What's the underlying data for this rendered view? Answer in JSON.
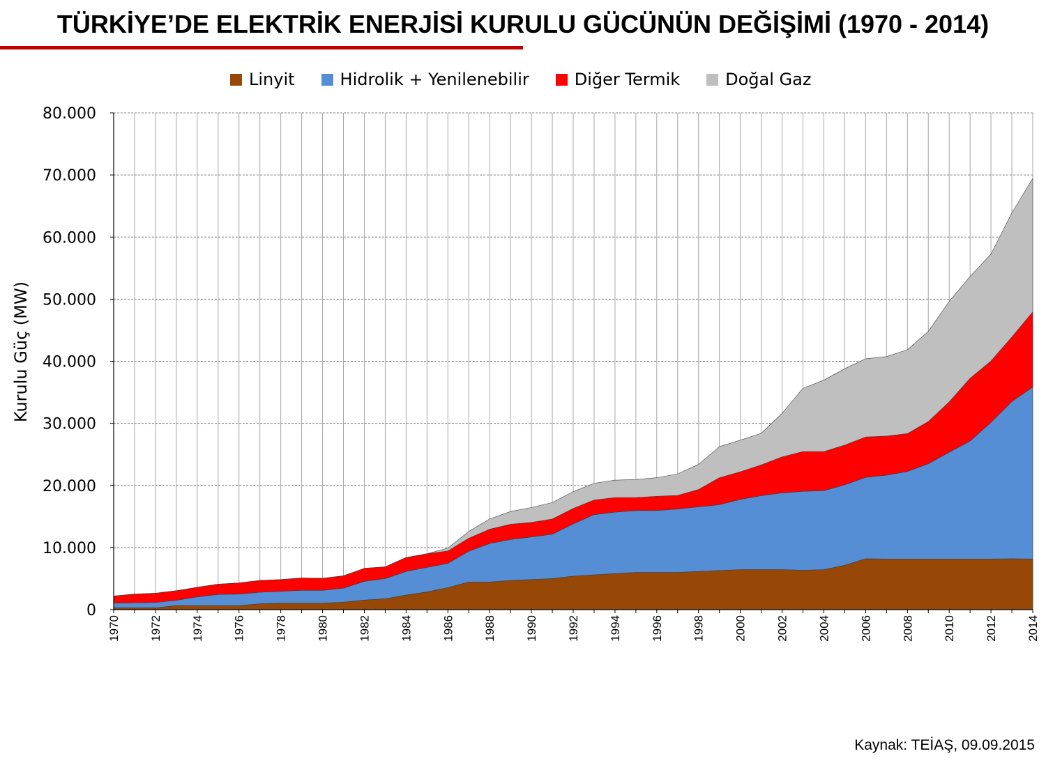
{
  "title": "TÜRKİYE’DE ELEKTRİK ENERJİSİ KURULU GÜCÜNÜN DEĞİŞİMİ (1970 - 2014)",
  "source": "Kaynak: TEİAŞ, 09.09.2015",
  "colors": {
    "title_rule": "#c00000"
  },
  "chart_data": {
    "type": "area",
    "stacked": true,
    "title": "TÜRKİYE’DE ELEKTRİK ENERJİSİ KURULU GÜCÜNÜN DEĞİŞİMİ (1970 - 2014)",
    "xlabel": "",
    "ylabel": "Kurulu Güç (MW)",
    "ylim": [
      0,
      80000
    ],
    "yticks": [
      0,
      10000,
      20000,
      30000,
      40000,
      50000,
      60000,
      70000,
      80000
    ],
    "ytick_labels": [
      "0",
      "10.000",
      "20.000",
      "30.000",
      "40.000",
      "50.000",
      "60.000",
      "70.000",
      "80.000"
    ],
    "xtick_labels": [
      "1970",
      "1972",
      "1974",
      "1976",
      "1978",
      "1980",
      "1982",
      "1984",
      "1986",
      "1988",
      "1990",
      "1992",
      "1994",
      "1996",
      "1998",
      "2000",
      "2002",
      "2004",
      "2006",
      "2008",
      "2010",
      "2012",
      "2014"
    ],
    "grid": true,
    "legend_position": "top",
    "x": [
      1970,
      1971,
      1972,
      1973,
      1974,
      1975,
      1976,
      1977,
      1978,
      1979,
      1980,
      1981,
      1982,
      1983,
      1984,
      1985,
      1986,
      1987,
      1988,
      1989,
      1990,
      1991,
      1992,
      1993,
      1994,
      1995,
      1996,
      1997,
      1998,
      1999,
      2000,
      2001,
      2002,
      2003,
      2004,
      2005,
      2006,
      2007,
      2008,
      2009,
      2010,
      2011,
      2012,
      2013,
      2014
    ],
    "series": [
      {
        "name": "Linyit",
        "color": "#974706",
        "values": [
          300,
          300,
          300,
          650,
          650,
          650,
          650,
          950,
          1050,
          1050,
          1050,
          1200,
          1550,
          1750,
          2350,
          2850,
          3550,
          4450,
          4450,
          4700,
          4850,
          5000,
          5400,
          5600,
          5800,
          6000,
          6000,
          6000,
          6150,
          6300,
          6450,
          6450,
          6450,
          6350,
          6450,
          7150,
          8200,
          8150,
          8150,
          8150,
          8150,
          8150,
          8150,
          8200,
          8150
        ]
      },
      {
        "name": "Hidrolik + Yenilenebilir",
        "color": "#558ed5",
        "values": [
          750,
          800,
          850,
          850,
          1400,
          1800,
          1850,
          1850,
          1900,
          2050,
          2050,
          2250,
          3000,
          3250,
          3800,
          3950,
          3900,
          4950,
          6200,
          6600,
          6850,
          7150,
          8400,
          9700,
          9900,
          9950,
          9950,
          10200,
          10400,
          10600,
          11300,
          11900,
          12350,
          12700,
          12700,
          12950,
          13100,
          13500,
          14100,
          15350,
          17200,
          19000,
          22000,
          25300,
          27700
        ]
      },
      {
        "name": "Diğer Termik",
        "color": "#ff0000",
        "values": [
          1150,
          1400,
          1500,
          1550,
          1550,
          1650,
          1800,
          1900,
          1900,
          2000,
          1950,
          2000,
          2100,
          1900,
          2250,
          2200,
          2000,
          2100,
          2300,
          2450,
          2350,
          2450,
          2500,
          2350,
          2350,
          2100,
          2300,
          2200,
          2800,
          4350,
          4450,
          4950,
          5800,
          6400,
          6300,
          6400,
          6500,
          6300,
          6100,
          6800,
          8100,
          10100,
          9900,
          10400,
          12100
        ]
      },
      {
        "name": "Doğal Gaz",
        "color": "#bfbfbf",
        "values": [
          0,
          0,
          0,
          0,
          0,
          0,
          0,
          0,
          0,
          0,
          0,
          0,
          0,
          0,
          0,
          0,
          450,
          1100,
          1650,
          2050,
          2400,
          2650,
          2700,
          2700,
          2800,
          2900,
          3000,
          3450,
          4050,
          5000,
          5100,
          5100,
          7000,
          10200,
          11500,
          12300,
          12600,
          12800,
          13500,
          14500,
          16200,
          16400,
          17200,
          20000,
          21500
        ]
      }
    ]
  }
}
